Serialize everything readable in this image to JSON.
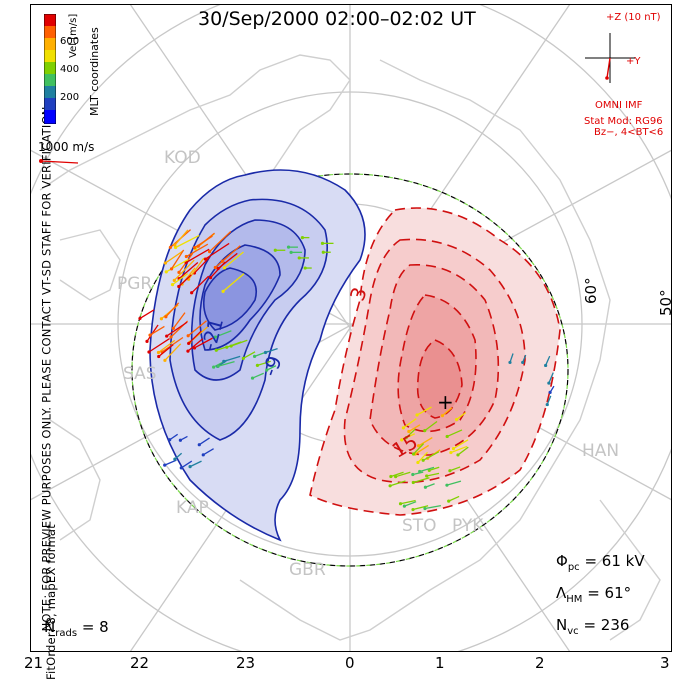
{
  "title": "30/Sep/2000  02:00–02:02  UT",
  "notes": {
    "line1": "NOTE: FOR PREVIEW PURPOSES ONLY. PLEASE CONTACT VT-SD STAFF FOR VERIFICATION.",
    "line2": "FitOrder: 8,  mapEX format",
    "coords": "MLT coordinates"
  },
  "colorbar": {
    "label": "Vel [m/s]",
    "ticks": [
      "600",
      "400",
      "200"
    ],
    "colors": [
      "#e00000",
      "#ff6000",
      "#ffb000",
      "#f0e000",
      "#80d000",
      "#40c060",
      "#2080a0",
      "#2040c0",
      "#0000ff"
    ]
  },
  "scale_vector": {
    "label": "1000 m/s"
  },
  "imf": {
    "title": "+Z (10 nT)",
    "axis_y": "+Y",
    "source": "OMNI IMF",
    "model": "Stat Mod: RG96",
    "condition": "Bz−, 4<BT<6"
  },
  "stats": {
    "phi_pc": "= 61 kV",
    "lambda_hm": "= 61°",
    "n_vc": "= 236",
    "n_rads": "= 8"
  },
  "mlt_ticks": [
    "21",
    "22",
    "23",
    "0",
    "1",
    "2",
    "3"
  ],
  "lat_labels": [
    "60°",
    "50°"
  ],
  "contour_labels": [
    "-21",
    "-9",
    "3",
    "15"
  ],
  "stations": [
    "KOD",
    "PGR",
    "SAS",
    "KAP",
    "GBR",
    "STO",
    "PYK",
    "HAN"
  ]
}
